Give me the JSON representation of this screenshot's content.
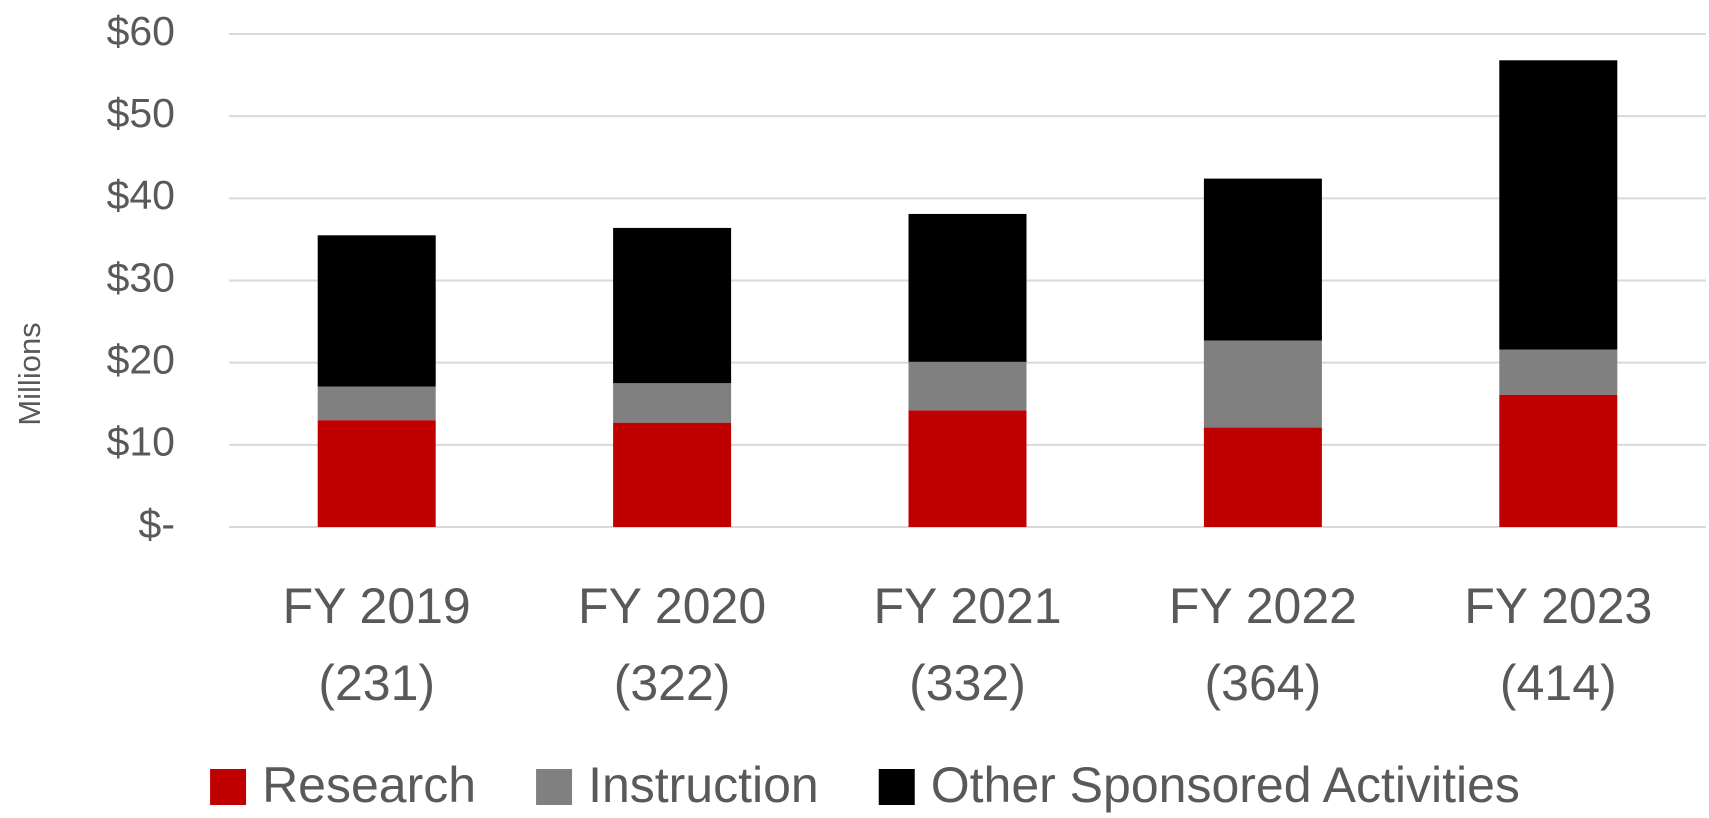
{
  "chart_data": {
    "type": "stacked_bar",
    "y_axis_label": "Millions",
    "categories": [
      [
        "FY 2019",
        "(231)"
      ],
      [
        "FY 2020",
        "(322)"
      ],
      [
        "FY 2021",
        "(332)"
      ],
      [
        "FY 2022",
        "(364)"
      ],
      [
        "FY 2023",
        "(414)"
      ]
    ],
    "series": [
      {
        "name": "Research",
        "color": "#c00000",
        "values": [
          13.0,
          12.7,
          14.2,
          12.1,
          16.1
        ]
      },
      {
        "name": "Instruction",
        "color": "#808080",
        "values": [
          4.1,
          4.8,
          5.9,
          10.6,
          5.5
        ]
      },
      {
        "name": "Other Sponsored Activities",
        "color": "#000000",
        "values": [
          18.4,
          18.9,
          18.0,
          19.7,
          35.2
        ]
      }
    ],
    "ylim": [
      0,
      60
    ],
    "yticks": [
      {
        "value": 0,
        "label": "$-"
      },
      {
        "value": 10,
        "label": "$10"
      },
      {
        "value": 20,
        "label": "$20"
      },
      {
        "value": 30,
        "label": "$30"
      },
      {
        "value": 40,
        "label": "$40"
      },
      {
        "value": 50,
        "label": "$50"
      },
      {
        "value": 60,
        "label": "$60"
      }
    ],
    "grid": true,
    "legend": "bottom"
  }
}
